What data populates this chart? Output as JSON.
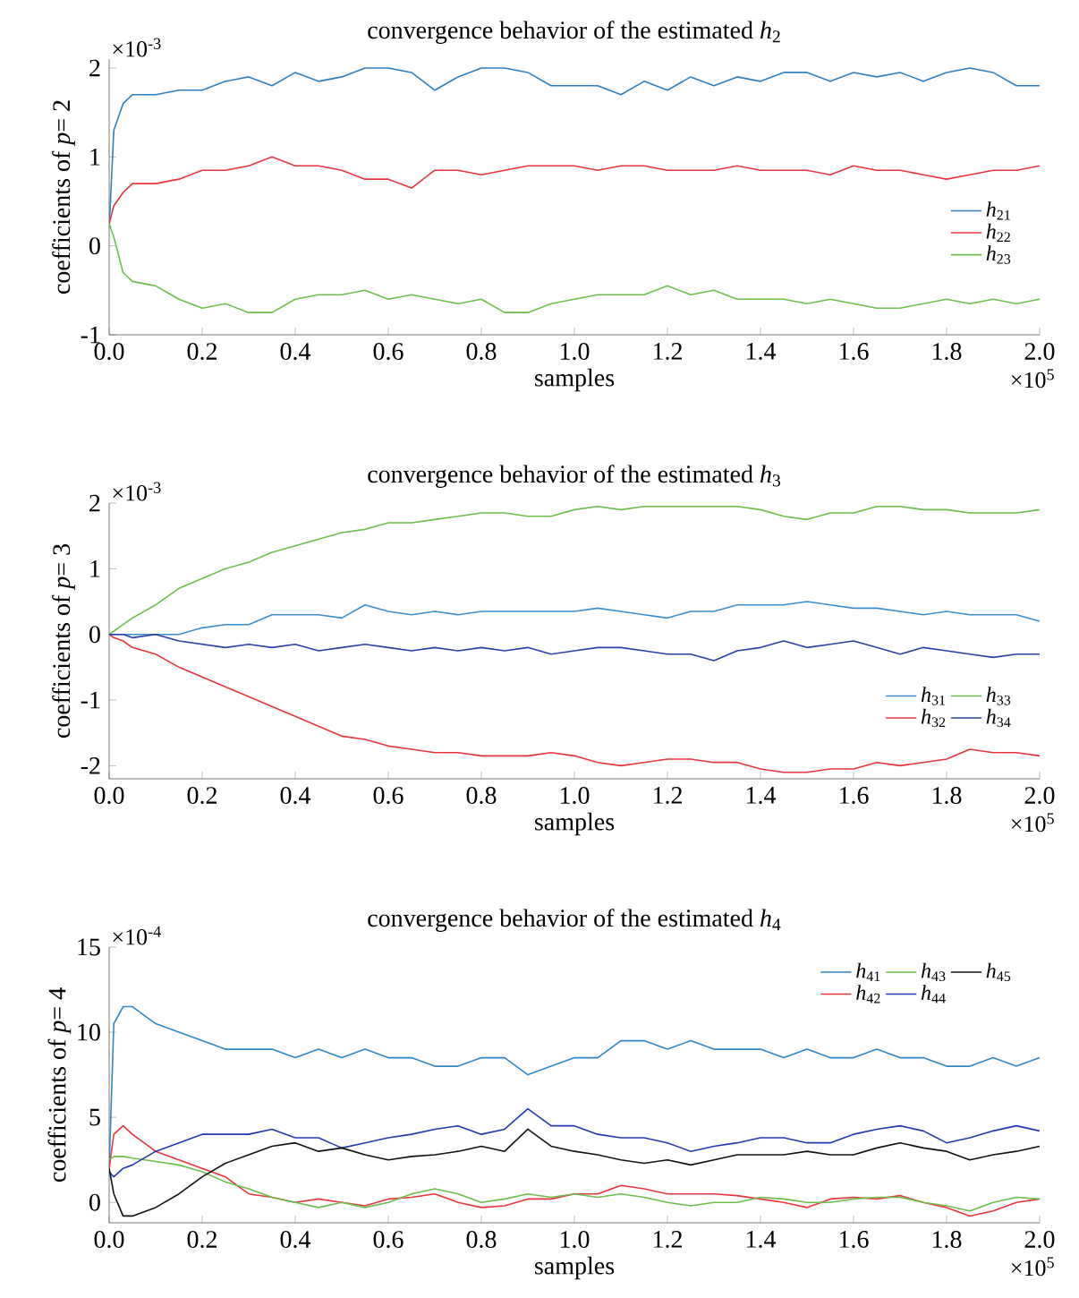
{
  "chart_data": [
    {
      "type": "line",
      "title": "convergence behavior of the estimated *h*$_{2}$",
      "xlabel": "samples",
      "ylabel": "coefficients of *p*= 2",
      "annotations": [
        "×10$^{-3}$",
        "×10$^{5}$"
      ],
      "x": [
        0,
        0.01,
        0.03,
        0.05,
        0.1,
        0.15,
        0.2,
        0.25,
        0.3,
        0.35,
        0.4,
        0.45,
        0.5,
        0.55,
        0.6,
        0.65,
        0.7,
        0.75,
        0.8,
        0.85,
        0.9,
        0.95,
        1.0,
        1.05,
        1.1,
        1.15,
        1.2,
        1.25,
        1.3,
        1.35,
        1.4,
        1.45,
        1.5,
        1.55,
        1.6,
        1.65,
        1.7,
        1.75,
        1.8,
        1.85,
        1.9,
        1.95,
        2.0
      ],
      "xlim": [
        0,
        2
      ],
      "xticks": [
        {
          "value": 0,
          "label": "0.0"
        },
        {
          "value": 0.2,
          "label": "0.2"
        },
        {
          "value": 0.4,
          "label": "0.4"
        },
        {
          "value": 0.6,
          "label": "0.6"
        },
        {
          "value": 0.8,
          "label": "0.8"
        },
        {
          "value": 1.0,
          "label": "1.0"
        },
        {
          "value": 1.2,
          "label": "1.2"
        },
        {
          "value": 1.4,
          "label": "1.4"
        },
        {
          "value": 1.6,
          "label": "1.6"
        },
        {
          "value": 1.8,
          "label": "1.8"
        },
        {
          "value": 2.0,
          "label": "2.0"
        }
      ],
      "ylim": [
        -1,
        2.1
      ],
      "yticks": [
        -1,
        0,
        1,
        2
      ],
      "legend": "right",
      "series": [
        {
          "name": "*h*$_{21}$",
          "color": "#2f7fc0",
          "values": [
            0.2,
            1.3,
            1.6,
            1.7,
            1.7,
            1.75,
            1.75,
            1.85,
            1.9,
            1.8,
            1.95,
            1.85,
            1.9,
            2.0,
            2.0,
            1.95,
            1.75,
            1.9,
            2.0,
            2.0,
            1.95,
            1.8,
            1.8,
            1.8,
            1.7,
            1.85,
            1.75,
            1.9,
            1.8,
            1.9,
            1.85,
            1.95,
            1.95,
            1.85,
            1.95,
            1.9,
            1.95,
            1.85,
            1.95,
            2.0,
            1.95,
            1.8,
            1.8
          ]
        },
        {
          "name": "*h*$_{22}$",
          "color": "#e8343c",
          "values": [
            0.25,
            0.45,
            0.6,
            0.7,
            0.7,
            0.75,
            0.85,
            0.85,
            0.9,
            1.0,
            0.9,
            0.9,
            0.85,
            0.75,
            0.75,
            0.65,
            0.85,
            0.85,
            0.8,
            0.85,
            0.9,
            0.9,
            0.9,
            0.85,
            0.9,
            0.9,
            0.85,
            0.85,
            0.85,
            0.9,
            0.85,
            0.85,
            0.85,
            0.8,
            0.9,
            0.85,
            0.85,
            0.8,
            0.75,
            0.8,
            0.85,
            0.85,
            0.9
          ]
        },
        {
          "name": "*h*$_{23}$",
          "color": "#6cbf4a",
          "values": [
            0.25,
            0.1,
            -0.3,
            -0.4,
            -0.45,
            -0.6,
            -0.7,
            -0.65,
            -0.75,
            -0.75,
            -0.6,
            -0.55,
            -0.55,
            -0.5,
            -0.6,
            -0.55,
            -0.6,
            -0.65,
            -0.6,
            -0.75,
            -0.75,
            -0.65,
            -0.6,
            -0.55,
            -0.55,
            -0.55,
            -0.45,
            -0.55,
            -0.5,
            -0.6,
            -0.6,
            -0.6,
            -0.65,
            -0.6,
            -0.65,
            -0.7,
            -0.7,
            -0.65,
            -0.6,
            -0.65,
            -0.6,
            -0.65,
            -0.6
          ]
        }
      ]
    },
    {
      "type": "line",
      "title": "convergence behavior of the estimated *h*$_{3}$",
      "xlabel": "samples",
      "ylabel": "coefficients of *p*= 3",
      "annotations": [
        "×10$^{-3}$",
        "×10$^{5}$"
      ],
      "x": [
        0,
        0.01,
        0.03,
        0.05,
        0.1,
        0.15,
        0.2,
        0.25,
        0.3,
        0.35,
        0.4,
        0.45,
        0.5,
        0.55,
        0.6,
        0.65,
        0.7,
        0.75,
        0.8,
        0.85,
        0.9,
        0.95,
        1.0,
        1.05,
        1.1,
        1.15,
        1.2,
        1.25,
        1.3,
        1.35,
        1.4,
        1.45,
        1.5,
        1.55,
        1.6,
        1.65,
        1.7,
        1.75,
        1.8,
        1.85,
        1.9,
        1.95,
        2.0
      ],
      "xlim": [
        0,
        2
      ],
      "xticks": [
        {
          "value": 0,
          "label": "0.0"
        },
        {
          "value": 0.2,
          "label": "0.2"
        },
        {
          "value": 0.4,
          "label": "0.4"
        },
        {
          "value": 0.6,
          "label": "0.6"
        },
        {
          "value": 0.8,
          "label": "0.8"
        },
        {
          "value": 1.0,
          "label": "1.0"
        },
        {
          "value": 1.2,
          "label": "1.2"
        },
        {
          "value": 1.4,
          "label": "1.4"
        },
        {
          "value": 1.6,
          "label": "1.6"
        },
        {
          "value": 1.8,
          "label": "1.8"
        },
        {
          "value": 2.0,
          "label": "2.0"
        }
      ],
      "ylim": [
        -2.2,
        2
      ],
      "yticks": [
        -2,
        -1,
        0,
        1,
        2
      ],
      "legend": "bottom right",
      "series": [
        {
          "name": "*h*$_{31}$",
          "color": "#3a8fd0",
          "values": [
            0,
            0,
            0,
            0,
            0,
            0,
            0.1,
            0.15,
            0.15,
            0.3,
            0.3,
            0.3,
            0.25,
            0.45,
            0.35,
            0.3,
            0.35,
            0.3,
            0.35,
            0.35,
            0.35,
            0.35,
            0.35,
            0.4,
            0.35,
            0.3,
            0.25,
            0.35,
            0.35,
            0.45,
            0.45,
            0.45,
            0.5,
            0.45,
            0.4,
            0.4,
            0.35,
            0.3,
            0.35,
            0.3,
            0.3,
            0.3,
            0.2
          ]
        },
        {
          "name": "*h*$_{32}$",
          "color": "#e8343c",
          "values": [
            0,
            -0.05,
            -0.1,
            -0.2,
            -0.3,
            -0.5,
            -0.65,
            -0.8,
            -0.95,
            -1.1,
            -1.25,
            -1.4,
            -1.55,
            -1.6,
            -1.7,
            -1.75,
            -1.8,
            -1.8,
            -1.85,
            -1.85,
            -1.85,
            -1.8,
            -1.85,
            -1.95,
            -2.0,
            -1.95,
            -1.9,
            -1.9,
            -1.95,
            -1.95,
            -2.05,
            -2.1,
            -2.1,
            -2.05,
            -2.05,
            -1.95,
            -2.0,
            -1.95,
            -1.9,
            -1.75,
            -1.8,
            -1.8,
            -1.85
          ]
        },
        {
          "name": "*h*$_{33}$",
          "color": "#6cbf4a",
          "values": [
            0,
            0.05,
            0.15,
            0.25,
            0.45,
            0.7,
            0.85,
            1.0,
            1.1,
            1.25,
            1.35,
            1.45,
            1.55,
            1.6,
            1.7,
            1.7,
            1.75,
            1.8,
            1.85,
            1.85,
            1.8,
            1.8,
            1.9,
            1.95,
            1.9,
            1.95,
            1.95,
            1.95,
            1.95,
            1.95,
            1.9,
            1.8,
            1.75,
            1.85,
            1.85,
            1.95,
            1.95,
            1.9,
            1.9,
            1.85,
            1.85,
            1.85,
            1.9
          ]
        },
        {
          "name": "*h*$_{34}$",
          "color": "#2b3fa8",
          "values": [
            0,
            0,
            0,
            -0.05,
            0,
            -0.1,
            -0.15,
            -0.2,
            -0.15,
            -0.2,
            -0.15,
            -0.25,
            -0.2,
            -0.15,
            -0.2,
            -0.25,
            -0.2,
            -0.25,
            -0.2,
            -0.25,
            -0.2,
            -0.3,
            -0.25,
            -0.2,
            -0.2,
            -0.25,
            -0.3,
            -0.3,
            -0.4,
            -0.25,
            -0.2,
            -0.1,
            -0.2,
            -0.15,
            -0.1,
            -0.2,
            -0.3,
            -0.2,
            -0.25,
            -0.3,
            -0.35,
            -0.3,
            -0.3
          ]
        }
      ]
    },
    {
      "type": "line",
      "title": "convergence behavior of the estimated *h*$_{4}$",
      "xlabel": "samples",
      "ylabel": "coefficients of *p*= 4",
      "annotations": [
        "×10$^{-4}$",
        "×10$^{5}$"
      ],
      "x": [
        0,
        0.01,
        0.03,
        0.05,
        0.1,
        0.15,
        0.2,
        0.25,
        0.3,
        0.35,
        0.4,
        0.45,
        0.5,
        0.55,
        0.6,
        0.65,
        0.7,
        0.75,
        0.8,
        0.85,
        0.9,
        0.95,
        1.0,
        1.05,
        1.1,
        1.15,
        1.2,
        1.25,
        1.3,
        1.35,
        1.4,
        1.45,
        1.5,
        1.55,
        1.6,
        1.65,
        1.7,
        1.75,
        1.8,
        1.85,
        1.9,
        1.95,
        2.0
      ],
      "xlim": [
        0,
        2
      ],
      "xticks": [
        {
          "value": 0,
          "label": "0.0"
        },
        {
          "value": 0.2,
          "label": "0.2"
        },
        {
          "value": 0.4,
          "label": "0.4"
        },
        {
          "value": 0.6,
          "label": "0.6"
        },
        {
          "value": 0.8,
          "label": "0.8"
        },
        {
          "value": 1.0,
          "label": "1.0"
        },
        {
          "value": 1.2,
          "label": "1.2"
        },
        {
          "value": 1.4,
          "label": "1.4"
        },
        {
          "value": 1.6,
          "label": "1.6"
        },
        {
          "value": 1.8,
          "label": "1.8"
        },
        {
          "value": 2.0,
          "label": "2.0"
        }
      ],
      "ylim": [
        -1.2,
        15
      ],
      "yticks": [
        0,
        5,
        10,
        15
      ],
      "legend": "top right",
      "series": [
        {
          "name": "*h*$_{41}$",
          "color": "#2f86c6",
          "values": [
            2,
            10.5,
            11.5,
            11.5,
            10.5,
            10,
            9.5,
            9,
            9,
            9,
            8.5,
            9,
            8.5,
            9,
            8.5,
            8.5,
            8,
            8,
            8.5,
            8.5,
            7.5,
            8,
            8.5,
            8.5,
            9.5,
            9.5,
            9,
            9.5,
            9,
            9,
            9,
            8.5,
            9,
            8.5,
            8.5,
            9,
            8.5,
            8.5,
            8,
            8,
            8.5,
            8,
            8.5
          ]
        },
        {
          "name": "*h*$_{42}$",
          "color": "#e8343c",
          "values": [
            2,
            4,
            4.5,
            4,
            3,
            2.5,
            2,
            1.5,
            0.5,
            0.3,
            0,
            0.2,
            0,
            -0.2,
            0.2,
            0.3,
            0.5,
            0,
            -0.3,
            -0.2,
            0.2,
            0.2,
            0.5,
            0.5,
            1,
            0.8,
            0.5,
            0.5,
            0.5,
            0.4,
            0.2,
            0,
            -0.3,
            0.2,
            0.3,
            0.2,
            0.4,
            0,
            -0.3,
            -0.8,
            -0.5,
            0,
            0.2
          ]
        },
        {
          "name": "*h*$_{43}$",
          "color": "#6cbf4a",
          "values": [
            2.5,
            2.7,
            2.7,
            2.6,
            2.4,
            2.2,
            1.8,
            1.2,
            0.8,
            0.3,
            0,
            -0.3,
            0,
            -0.3,
            0,
            0.5,
            0.8,
            0.5,
            0,
            0.2,
            0.5,
            0.3,
            0.5,
            0.3,
            0.5,
            0.3,
            0,
            -0.2,
            0,
            0,
            0.3,
            0.2,
            0,
            0,
            0.2,
            0.3,
            0.3,
            0,
            -0.2,
            -0.5,
            0,
            0.3,
            0.2
          ]
        },
        {
          "name": "*h*$_{44}$",
          "color": "#2438b0",
          "values": [
            1.8,
            1.5,
            2,
            2.2,
            3,
            3.5,
            4,
            4,
            4,
            4.3,
            3.8,
            3.8,
            3.2,
            3.5,
            3.8,
            4,
            4.3,
            4.5,
            4,
            4.3,
            5.5,
            4.5,
            4.5,
            4,
            3.8,
            3.8,
            3.5,
            3,
            3.3,
            3.5,
            3.8,
            3.8,
            3.5,
            3.5,
            4,
            4.3,
            4.5,
            4.2,
            3.5,
            3.8,
            4.2,
            4.5,
            4.2
          ]
        },
        {
          "name": "*h*$_{45}$",
          "color": "#111111",
          "values": [
            2,
            0.5,
            -0.8,
            -0.8,
            -0.3,
            0.5,
            1.5,
            2.3,
            2.8,
            3.3,
            3.5,
            3,
            3.2,
            2.8,
            2.5,
            2.7,
            2.8,
            3,
            3.3,
            3,
            4.3,
            3.3,
            3,
            2.8,
            2.5,
            2.3,
            2.5,
            2.2,
            2.5,
            2.8,
            2.8,
            2.8,
            3,
            2.8,
            2.8,
            3.2,
            3.5,
            3.2,
            3,
            2.5,
            2.8,
            3,
            3.3
          ]
        }
      ]
    }
  ]
}
